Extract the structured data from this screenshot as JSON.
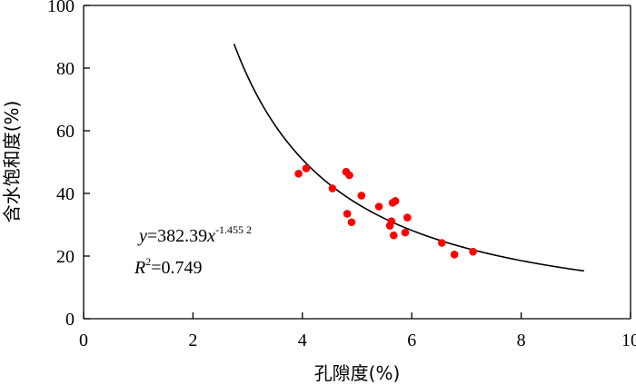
{
  "chart_data": {
    "type": "scatter",
    "xlabel": "孔隙度(%)",
    "ylabel": "含水饱和度(%)",
    "xlim": [
      0,
      10
    ],
    "ylim": [
      0,
      100
    ],
    "x_ticks": [
      0,
      2,
      4,
      6,
      8,
      10
    ],
    "y_ticks": [
      0,
      20,
      40,
      60,
      80,
      100
    ],
    "grid": false,
    "colors": {
      "points": "#ff0000",
      "fit_line": "#000000",
      "axes": "#000000"
    },
    "points": [
      {
        "x": 3.93,
        "y": 46.3
      },
      {
        "x": 4.07,
        "y": 48.0
      },
      {
        "x": 4.55,
        "y": 41.6
      },
      {
        "x": 4.8,
        "y": 46.9
      },
      {
        "x": 4.86,
        "y": 45.8
      },
      {
        "x": 4.82,
        "y": 33.5
      },
      {
        "x": 4.9,
        "y": 30.8
      },
      {
        "x": 5.08,
        "y": 39.3
      },
      {
        "x": 5.4,
        "y": 35.8
      },
      {
        "x": 5.6,
        "y": 29.7
      },
      {
        "x": 5.63,
        "y": 31.1
      },
      {
        "x": 5.65,
        "y": 37.0
      },
      {
        "x": 5.7,
        "y": 37.6
      },
      {
        "x": 5.67,
        "y": 26.6
      },
      {
        "x": 5.88,
        "y": 27.5
      },
      {
        "x": 5.92,
        "y": 32.3
      },
      {
        "x": 6.55,
        "y": 24.2
      },
      {
        "x": 6.78,
        "y": 20.5
      },
      {
        "x": 7.12,
        "y": 21.4
      }
    ],
    "fit": {
      "coefficient": 382.39,
      "exponent": -1.4552,
      "x_range": [
        2.75,
        9.15
      ]
    },
    "annotation": {
      "y_label": "y",
      "equals_coef": "=382.39",
      "x_label": "x",
      "exponent_text": "-1.455 2",
      "r_label": "R",
      "r_sup": "2",
      "r_value": "=0.749"
    }
  }
}
